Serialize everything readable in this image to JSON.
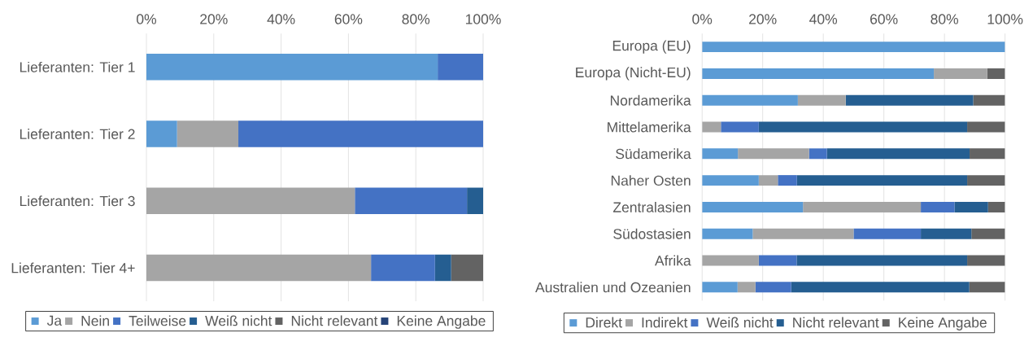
{
  "chart_data": [
    {
      "type": "bar",
      "orientation": "horizontal",
      "stacked": true,
      "categories": [
        "Lieferanten: Tier 1",
        "Lieferanten: Tier 2",
        "Lieferanten: Tier 3",
        "Lieferanten: Tier 4+"
      ],
      "series": [
        {
          "name": "Ja",
          "color": "#5b9bd5",
          "values": [
            86.5,
            9.1,
            null,
            null
          ]
        },
        {
          "name": "Nein",
          "color": "#a5a5a5",
          "values": [
            null,
            18.2,
            61.9,
            66.7
          ]
        },
        {
          "name": "Teilweise",
          "color": "#4472c4",
          "values": [
            13.5,
            72.7,
            33.3,
            19.0
          ]
        },
        {
          "name": "Weiß nicht",
          "color": "#255e91",
          "values": [
            null,
            null,
            4.8,
            4.8
          ]
        },
        {
          "name": "Nicht relevant",
          "color": "#636363",
          "values": [
            null,
            null,
            null,
            9.5
          ]
        },
        {
          "name": "Keine Angabe",
          "color": "#264478",
          "values": [
            null,
            null,
            null,
            null
          ]
        }
      ],
      "xlim": [
        0,
        100
      ],
      "xticks": [
        {
          "value": 0,
          "label": "0%"
        },
        {
          "value": 20,
          "label": "20%"
        },
        {
          "value": 40,
          "label": "40%"
        },
        {
          "value": 60,
          "label": "60%"
        },
        {
          "value": 80,
          "label": "80%"
        },
        {
          "value": 100,
          "label": "100%"
        }
      ],
      "grid": "x",
      "legend": "bottom"
    },
    {
      "type": "bar",
      "orientation": "horizontal",
      "stacked": true,
      "categories": [
        "Europa (EU)",
        "Europa (Nicht-EU)",
        "Nordamerika",
        "Mittelamerika",
        "Südamerika",
        "Naher Osten",
        "Zentralasien",
        "Südostasien",
        "Afrika",
        "Australien und Ozeanien"
      ],
      "series": [
        {
          "name": "Direkt",
          "color": "#5b9bd5",
          "values": [
            100,
            76.5,
            31.6,
            null,
            11.8,
            18.7,
            33.3,
            16.7,
            null,
            11.7
          ]
        },
        {
          "name": "Indirekt",
          "color": "#a5a5a5",
          "values": [
            null,
            17.6,
            15.8,
            6.2,
            23.5,
            6.3,
            38.9,
            33.3,
            18.7,
            5.9
          ]
        },
        {
          "name": "Weiß nicht",
          "color": "#4472c4",
          "values": [
            null,
            null,
            null,
            12.5,
            5.9,
            6.3,
            11.1,
            22.2,
            12.5,
            11.8
          ]
        },
        {
          "name": "Nicht relevant",
          "color": "#255e91",
          "values": [
            null,
            null,
            42.1,
            68.8,
            47.1,
            56.2,
            11.1,
            16.7,
            56.3,
            58.8
          ]
        },
        {
          "name": "Keine Angabe",
          "color": "#636363",
          "values": [
            null,
            5.9,
            10.5,
            12.5,
            11.7,
            12.5,
            5.6,
            11.1,
            12.5,
            11.8
          ]
        }
      ],
      "xlim": [
        0,
        100
      ],
      "xticks": [
        {
          "value": 0,
          "label": "0%"
        },
        {
          "value": 20,
          "label": "20%"
        },
        {
          "value": 40,
          "label": "40%"
        },
        {
          "value": 60,
          "label": "60%"
        },
        {
          "value": 80,
          "label": "80%"
        },
        {
          "value": 100,
          "label": "100%"
        }
      ],
      "grid": "x",
      "legend": "bottom"
    }
  ]
}
